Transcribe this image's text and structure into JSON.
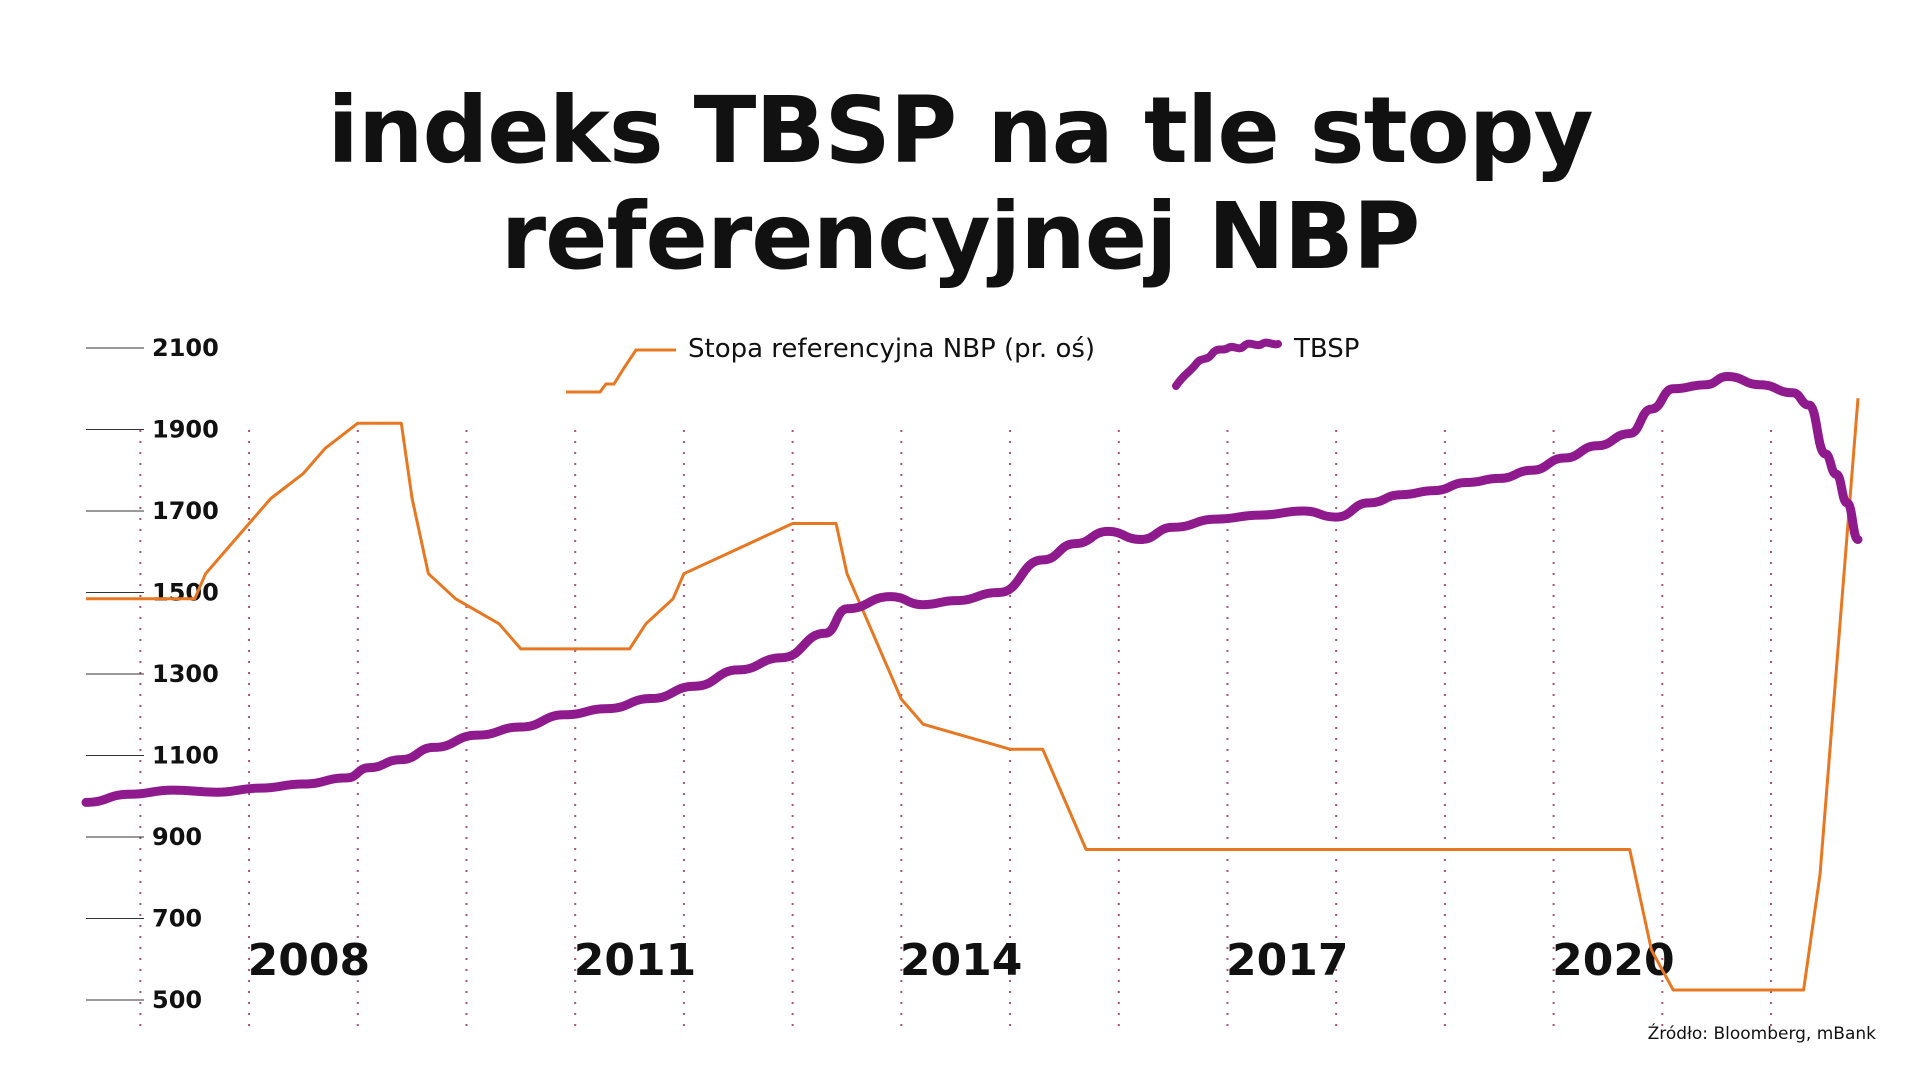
{
  "colors": {
    "rate": "#e87722",
    "tbsp": "#8e1a8e",
    "grid": "#b0507a",
    "tick": "#333333"
  },
  "chart_data": {
    "type": "line",
    "title_lines": [
      "indeks TBSP na tle stopy",
      "referencyjnej NBP"
    ],
    "source": "Źródło: Bloomberg, mBank",
    "x_range": [
      2006.0,
      2022.3
    ],
    "y_left": {
      "ticks": [
        "2100",
        "1900",
        "1700",
        "1500",
        "1300",
        "1100",
        "900",
        "700",
        "500"
      ],
      "range": [
        500,
        2100
      ]
    },
    "y_right": {
      "range": [
        0.0,
        6.5
      ],
      "label_shown": false
    },
    "year_labels": [
      {
        "x": 2008,
        "label": "2008"
      },
      {
        "x": 2011,
        "label": "2011"
      },
      {
        "x": 2014,
        "label": "2014"
      },
      {
        "x": 2017,
        "label": "2017"
      },
      {
        "x": 2020,
        "label": "2020"
      }
    ],
    "vertical_grid_x": [
      2006.5,
      2007.5,
      2008.5,
      2009.5,
      2010.5,
      2011.5,
      2012.5,
      2013.5,
      2014.5,
      2015.5,
      2016.5,
      2017.5,
      2018.5,
      2019.5,
      2020.5,
      2021.5
    ],
    "legend": "top-center",
    "series": [
      {
        "name": "Stopa referencyjna NBP (pr. oś)",
        "axis": "right",
        "step": true,
        "points": [
          [
            2006.0,
            4.0
          ],
          [
            2007.0,
            4.0
          ],
          [
            2007.1,
            4.25
          ],
          [
            2007.3,
            4.5
          ],
          [
            2007.5,
            4.75
          ],
          [
            2007.7,
            5.0
          ],
          [
            2008.0,
            5.25
          ],
          [
            2008.2,
            5.5
          ],
          [
            2008.5,
            5.75
          ],
          [
            2008.9,
            5.75
          ],
          [
            2009.0,
            5.0
          ],
          [
            2009.15,
            4.25
          ],
          [
            2009.4,
            4.0
          ],
          [
            2009.8,
            3.75
          ],
          [
            2010.0,
            3.5
          ],
          [
            2010.2,
            3.5
          ],
          [
            2011.0,
            3.5
          ],
          [
            2011.15,
            3.75
          ],
          [
            2011.4,
            4.0
          ],
          [
            2011.5,
            4.25
          ],
          [
            2012.0,
            4.5
          ],
          [
            2012.5,
            4.75
          ],
          [
            2012.9,
            4.75
          ],
          [
            2013.0,
            4.25
          ],
          [
            2013.2,
            3.75
          ],
          [
            2013.5,
            3.0
          ],
          [
            2013.7,
            2.75
          ],
          [
            2014.5,
            2.5
          ],
          [
            2014.8,
            2.5
          ],
          [
            2015.0,
            2.0
          ],
          [
            2015.2,
            1.5
          ],
          [
            2020.2,
            1.5
          ],
          [
            2020.4,
            0.5
          ],
          [
            2020.6,
            0.1
          ],
          [
            2021.8,
            0.1
          ],
          [
            2021.95,
            1.25
          ],
          [
            2022.3,
            6.0
          ]
        ]
      },
      {
        "name": "TBSP",
        "axis": "left",
        "step": false,
        "points": [
          [
            2006.0,
            985
          ],
          [
            2006.4,
            1005
          ],
          [
            2006.8,
            1015
          ],
          [
            2007.2,
            1010
          ],
          [
            2007.6,
            1020
          ],
          [
            2008.0,
            1030
          ],
          [
            2008.4,
            1045
          ],
          [
            2008.6,
            1070
          ],
          [
            2008.9,
            1090
          ],
          [
            2009.2,
            1120
          ],
          [
            2009.6,
            1150
          ],
          [
            2010.0,
            1170
          ],
          [
            2010.4,
            1200
          ],
          [
            2010.8,
            1215
          ],
          [
            2011.2,
            1240
          ],
          [
            2011.6,
            1270
          ],
          [
            2012.0,
            1310
          ],
          [
            2012.4,
            1340
          ],
          [
            2012.8,
            1400
          ],
          [
            2013.0,
            1460
          ],
          [
            2013.4,
            1490
          ],
          [
            2013.7,
            1470
          ],
          [
            2014.0,
            1480
          ],
          [
            2014.4,
            1500
          ],
          [
            2014.8,
            1580
          ],
          [
            2015.1,
            1620
          ],
          [
            2015.4,
            1650
          ],
          [
            2015.7,
            1630
          ],
          [
            2016.0,
            1660
          ],
          [
            2016.4,
            1680
          ],
          [
            2016.8,
            1690
          ],
          [
            2017.2,
            1700
          ],
          [
            2017.5,
            1685
          ],
          [
            2017.8,
            1720
          ],
          [
            2018.1,
            1740
          ],
          [
            2018.4,
            1750
          ],
          [
            2018.7,
            1770
          ],
          [
            2019.0,
            1780
          ],
          [
            2019.3,
            1800
          ],
          [
            2019.6,
            1830
          ],
          [
            2019.9,
            1860
          ],
          [
            2020.2,
            1890
          ],
          [
            2020.4,
            1950
          ],
          [
            2020.6,
            2000
          ],
          [
            2020.9,
            2010
          ],
          [
            2021.1,
            2030
          ],
          [
            2021.4,
            2010
          ],
          [
            2021.7,
            1990
          ],
          [
            2021.85,
            1960
          ],
          [
            2022.0,
            1840
          ],
          [
            2022.1,
            1790
          ],
          [
            2022.2,
            1720
          ],
          [
            2022.3,
            1630
          ]
        ]
      }
    ]
  }
}
